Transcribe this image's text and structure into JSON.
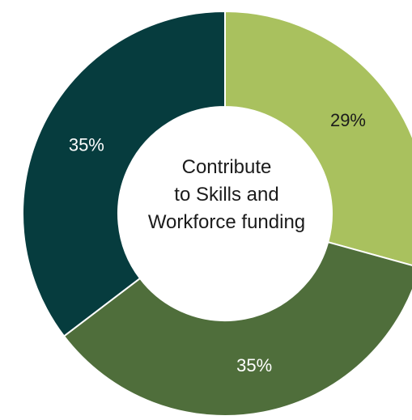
{
  "chart_data": {
    "type": "pie",
    "variant": "donut",
    "center_text": [
      "Contribute",
      "to Skills and",
      "Workforce funding"
    ],
    "slices": [
      {
        "label": "29%",
        "value": 29,
        "color": "#a9c15e",
        "text_color": "#1b1b1b"
      },
      {
        "label": "35%",
        "value": 35,
        "color": "#4f6e3b",
        "text_color": "#ffffff"
      },
      {
        "label": "35%",
        "value": 35,
        "color": "#063c3e",
        "text_color": "#ffffff"
      }
    ]
  }
}
